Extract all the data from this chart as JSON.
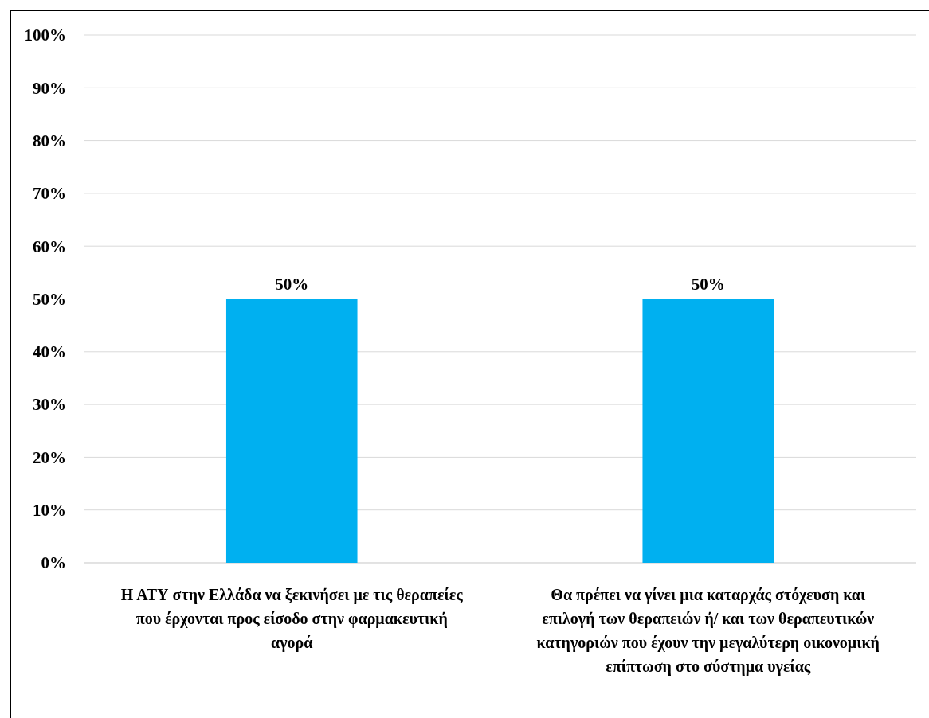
{
  "chart_data": {
    "type": "bar",
    "categories": [
      "Η ΑΤΥ στην Ελλάδα να ξεκινήσει με τις θεραπείες που έρχονται προς είσοδο στην φαρμακευτική αγορά",
      "Θα πρέπει να γίνει μια καταρχάς στόχευση και επιλογή των θεραπειών ή/ και των θεραπευτικών κατηγοριών που έχουν την μεγαλύτερη οικονομική επίπτωση στο σύστημα υγείας"
    ],
    "values": [
      50,
      50
    ],
    "color": "#00b0f0",
    "value_labels": [
      "50%",
      "50%"
    ],
    "ylim": [
      0,
      100
    ],
    "yticks": [
      {
        "value": 0,
        "label": "0%"
      },
      {
        "value": 10,
        "label": "10%"
      },
      {
        "value": 20,
        "label": "20%"
      },
      {
        "value": 30,
        "label": "30%"
      },
      {
        "value": 40,
        "label": "40%"
      },
      {
        "value": 50,
        "label": "50%"
      },
      {
        "value": 60,
        "label": "60%"
      },
      {
        "value": 70,
        "label": "70%"
      },
      {
        "value": 80,
        "label": "80%"
      },
      {
        "value": 90,
        "label": "90%"
      },
      {
        "value": 100,
        "label": "100%"
      }
    ],
    "grid": "y"
  }
}
